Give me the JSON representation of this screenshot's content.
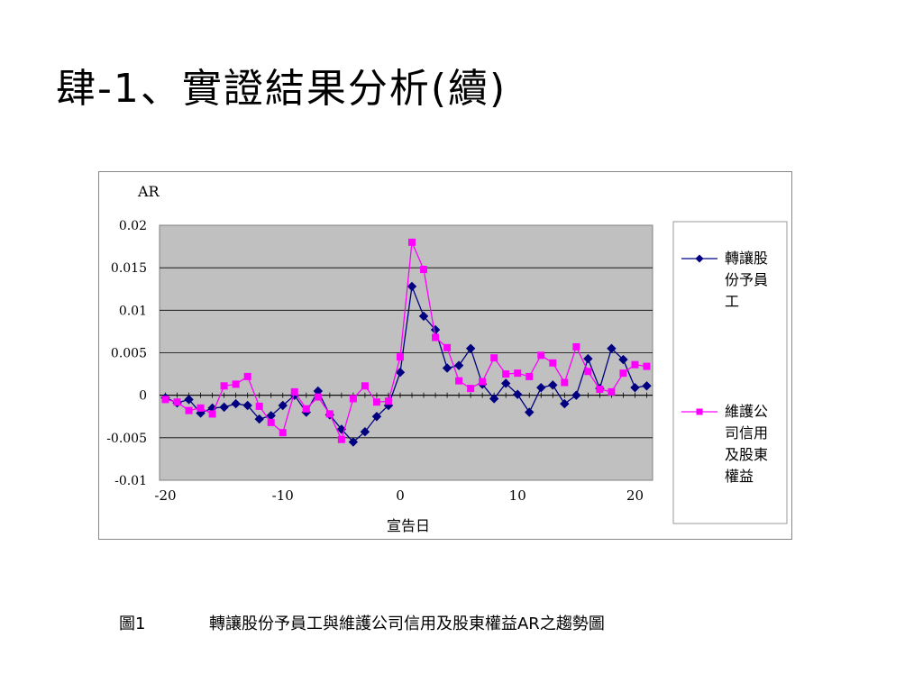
{
  "slide": {
    "title": "肆-1、實證結果分析(續)",
    "caption_number": "圖1",
    "caption_text": "轉讓股份予員工與維護公司信用及股東權益AR之趨勢圖"
  },
  "chart_data": {
    "type": "line",
    "ylabel": "AR",
    "xlabel": "宣告日",
    "xlim": [
      -20.5,
      21.5
    ],
    "ylim": [
      -0.01,
      0.02
    ],
    "yticks": [
      "0.02",
      "0.015",
      "0.01",
      "0.005",
      "0",
      "-0.005",
      "-0.01"
    ],
    "xticks": [
      "-20",
      "-10",
      "0",
      "10",
      "20"
    ],
    "grid": true,
    "legend_position": "right",
    "x": [
      -20,
      -19,
      -18,
      -17,
      -16,
      -15,
      -14,
      -13,
      -12,
      -11,
      -10,
      -9,
      -8,
      -7,
      -6,
      -5,
      -4,
      -3,
      -2,
      -1,
      0,
      1,
      2,
      3,
      4,
      5,
      6,
      7,
      8,
      9,
      10,
      11,
      12,
      13,
      14,
      15,
      16,
      17,
      18,
      19,
      20,
      21
    ],
    "series": [
      {
        "name": "轉讓股份予員工",
        "color": "#000080",
        "marker": "diamond",
        "values": [
          -0.0003,
          -0.0009,
          -0.0005,
          -0.0021,
          -0.0015,
          -0.0014,
          -0.001,
          -0.0012,
          -0.0028,
          -0.0024,
          -0.0012,
          0.0,
          -0.002,
          0.0005,
          -0.0023,
          -0.004,
          -0.0055,
          -0.0043,
          -0.0025,
          -0.0012,
          0.0027,
          0.0128,
          0.0093,
          0.0077,
          0.0032,
          0.0035,
          0.0055,
          0.0013,
          -0.0004,
          0.0014,
          0.0001,
          -0.002,
          0.0009,
          0.0012,
          -0.001,
          0.0,
          0.0043,
          0.0008,
          0.0055,
          0.0042,
          0.0009,
          0.0011
        ]
      },
      {
        "name": "維護公司信用及股東權益",
        "color": "#ff00ff",
        "marker": "square",
        "values": [
          -0.0005,
          -0.0008,
          -0.0018,
          -0.0015,
          -0.0022,
          0.0011,
          0.0013,
          0.0022,
          -0.0013,
          -0.0032,
          -0.0044,
          0.0004,
          -0.0016,
          -0.0002,
          -0.0022,
          -0.0052,
          -0.0004,
          0.0011,
          -0.0008,
          -0.0007,
          0.0045,
          0.018,
          0.0148,
          0.0068,
          0.0056,
          0.0017,
          0.0008,
          0.0016,
          0.0044,
          0.0025,
          0.0026,
          0.0022,
          0.0047,
          0.0038,
          0.0015,
          0.0057,
          0.0028,
          0.0007,
          0.0004,
          0.0026,
          0.0036,
          0.0034
        ]
      }
    ],
    "legend": [
      [
        "轉讓股",
        "份予員",
        "工"
      ],
      [
        "維護公",
        "司信用",
        "及股東",
        "權益"
      ]
    ]
  }
}
